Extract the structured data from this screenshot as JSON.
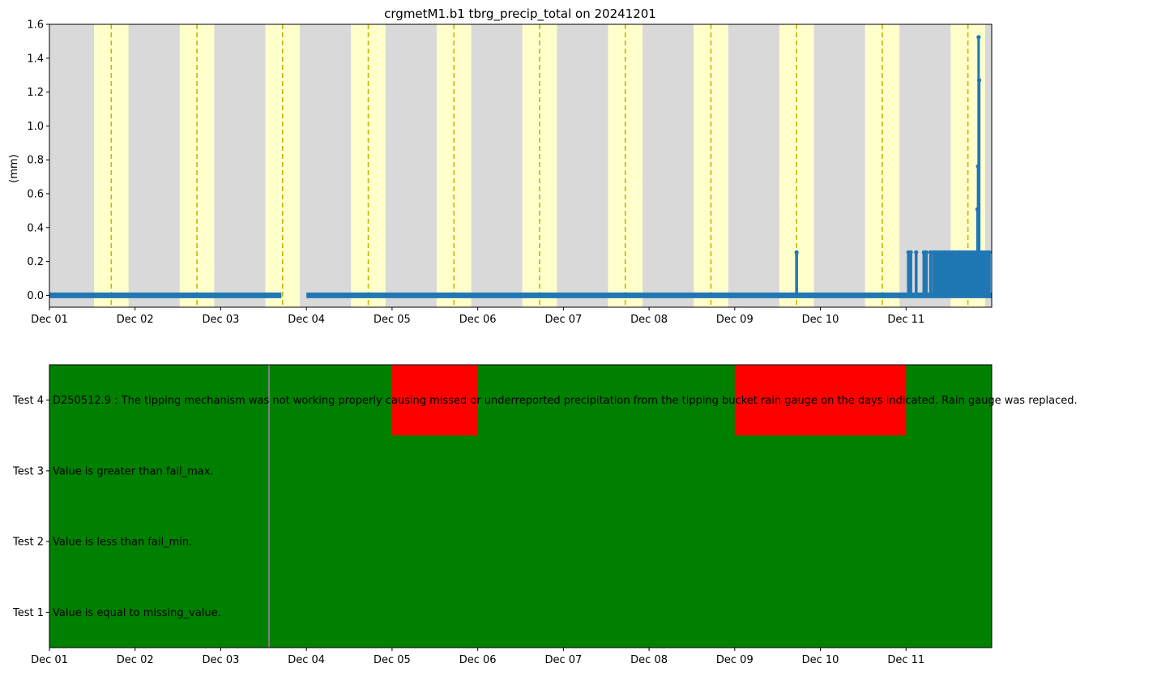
{
  "chart_data": [
    {
      "type": "line",
      "title": "crgmetM1.b1 tbrg_precip_total on 20241201",
      "xlabel": "",
      "ylabel": "(mm)",
      "xlim": [
        "2024-12-01",
        "2024-12-12"
      ],
      "ylim": [
        -0.07,
        1.6
      ],
      "x_ticks": [
        "Dec 01",
        "Dec 02",
        "Dec 03",
        "Dec 04",
        "Dec 05",
        "Dec 06",
        "Dec 07",
        "Dec 08",
        "Dec 09",
        "Dec 10",
        "Dec 11"
      ],
      "y_ticks": [
        "0.0",
        "0.2",
        "0.4",
        "0.6",
        "0.8",
        "1.0",
        "1.2",
        "1.4",
        "1.6"
      ],
      "background_color": "#d9d9d9",
      "daylight_color": "#ffffcc",
      "solar_noon_color": "#c8b400",
      "series_color": "#1f77b4",
      "daylight_bands": [
        [
          "2024-12-01T12:30",
          "2024-12-01T22:10"
        ],
        [
          "2024-12-02T12:30",
          "2024-12-02T22:10"
        ],
        [
          "2024-12-03T12:30",
          "2024-12-03T22:10"
        ],
        [
          "2024-12-04T12:30",
          "2024-12-04T22:10"
        ],
        [
          "2024-12-05T12:30",
          "2024-12-05T22:10"
        ],
        [
          "2024-12-06T12:30",
          "2024-12-06T22:10"
        ],
        [
          "2024-12-07T12:30",
          "2024-12-07T22:10"
        ],
        [
          "2024-12-08T12:30",
          "2024-12-08T22:10"
        ],
        [
          "2024-12-09T12:30",
          "2024-12-09T22:10"
        ],
        [
          "2024-12-10T12:30",
          "2024-12-10T22:10"
        ],
        [
          "2024-12-11T12:30",
          "2024-12-11T22:10"
        ]
      ],
      "solar_noon": [
        "2024-12-01T17:20",
        "2024-12-02T17:20",
        "2024-12-03T17:20",
        "2024-12-04T17:20",
        "2024-12-05T17:20",
        "2024-12-06T17:20",
        "2024-12-07T17:20",
        "2024-12-08T17:20",
        "2024-12-09T17:20",
        "2024-12-10T17:20",
        "2024-12-11T17:20"
      ],
      "baseline": {
        "value": 0.0,
        "segments": [
          [
            "2024-12-01T00:00",
            "2024-12-03T17:00"
          ],
          [
            "2024-12-04T00:00",
            "2024-12-12T00:00"
          ]
        ]
      },
      "spikes": [
        {
          "x": "2024-12-09T17:20",
          "y": 0.254
        },
        {
          "x": "2024-12-11T00:40",
          "y": 0.254
        },
        {
          "x": "2024-12-11T01:20",
          "y": 0.254
        },
        {
          "x": "2024-12-11T02:50",
          "y": 0.254
        },
        {
          "x": "2024-12-11T05:00",
          "y": 0.254
        },
        {
          "x": "2024-12-11T05:40",
          "y": 0.254
        },
        {
          "x": "2024-12-11T06:50",
          "y": 0.254
        },
        {
          "x": "2024-12-11T07:40",
          "y": 0.254
        },
        {
          "x": "2024-12-11T08:20",
          "y": 0.254
        },
        {
          "x": "2024-12-11T09:00",
          "y": 0.254
        },
        {
          "x": "2024-12-11T09:40",
          "y": 0.254
        },
        {
          "x": "2024-12-11T10:20",
          "y": 0.254
        },
        {
          "x": "2024-12-11T11:00",
          "y": 0.254
        },
        {
          "x": "2024-12-11T11:40",
          "y": 0.254
        },
        {
          "x": "2024-12-11T12:20",
          "y": 0.254
        },
        {
          "x": "2024-12-11T13:00",
          "y": 0.254
        },
        {
          "x": "2024-12-11T13:40",
          "y": 0.254
        },
        {
          "x": "2024-12-11T14:20",
          "y": 0.254
        },
        {
          "x": "2024-12-11T15:00",
          "y": 0.254
        },
        {
          "x": "2024-12-11T15:40",
          "y": 0.254
        },
        {
          "x": "2024-12-11T16:20",
          "y": 0.254
        },
        {
          "x": "2024-12-11T17:00",
          "y": 0.254
        },
        {
          "x": "2024-12-11T17:40",
          "y": 0.254
        },
        {
          "x": "2024-12-11T18:20",
          "y": 0.254
        },
        {
          "x": "2024-12-11T19:00",
          "y": 0.254
        },
        {
          "x": "2024-12-11T19:40",
          "y": 0.254
        },
        {
          "x": "2024-12-11T20:10",
          "y": 0.254
        },
        {
          "x": "2024-12-11T20:40",
          "y": 0.254
        },
        {
          "x": "2024-12-11T21:20",
          "y": 0.254
        },
        {
          "x": "2024-12-11T22:00",
          "y": 0.254
        },
        {
          "x": "2024-12-11T22:40",
          "y": 0.254
        },
        {
          "x": "2024-12-11T23:20",
          "y": 0.254
        }
      ],
      "tall_series": [
        {
          "x": "2024-12-11T20:00",
          "y": 0.508
        },
        {
          "x": "2024-12-11T20:10",
          "y": 0.762
        },
        {
          "x": "2024-12-11T20:20",
          "y": 1.524
        },
        {
          "x": "2024-12-11T20:30",
          "y": 1.27
        },
        {
          "x": "2024-12-11T20:40",
          "y": 0.254
        }
      ]
    },
    {
      "type": "heatmap",
      "title": "",
      "xlim": [
        "2024-12-01",
        "2024-12-12"
      ],
      "x_ticks": [
        "Dec 01",
        "Dec 02",
        "Dec 03",
        "Dec 04",
        "Dec 05",
        "Dec 06",
        "Dec 07",
        "Dec 08",
        "Dec 09",
        "Dec 10",
        "Dec 11"
      ],
      "rows": [
        "Test 4",
        "Test 3",
        "Test 2",
        "Test 1"
      ],
      "pass_color": "#008000",
      "fail_color": "#ff0000",
      "marker_line": {
        "x": "2024-12-03T13:30",
        "color": "#7f7f7f"
      },
      "descriptions": {
        "Test 4": "D250512.9 : The tipping mechanism was not working properly causing missed or underreported precipitation from the tipping bucket rain gauge on the days indicated. Rain gauge was replaced.",
        "Test 3": "Value is greater than fail_max.",
        "Test 2": "Value is less than fail_min.",
        "Test 1": "Value is equal to missing_value."
      },
      "fail_intervals": [
        {
          "row": "Test 4",
          "start": "2024-12-05T00:00",
          "end": "2024-12-06T00:00"
        },
        {
          "row": "Test 4",
          "start": "2024-12-09T00:00",
          "end": "2024-12-11T00:00"
        }
      ]
    }
  ]
}
